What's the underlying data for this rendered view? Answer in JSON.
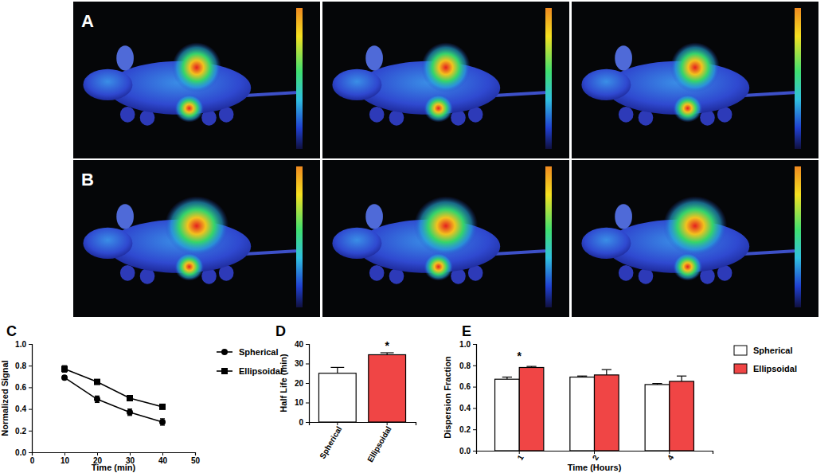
{
  "photo_panels": {
    "labels": [
      "A",
      "B"
    ]
  },
  "chart_data": [
    {
      "type": "line",
      "panel_label": "C",
      "x": [
        10,
        20,
        30,
        40
      ],
      "xlim": [
        0,
        50
      ],
      "xticks": [
        0,
        10,
        20,
        30,
        40,
        50
      ],
      "ylim": [
        0,
        1
      ],
      "yticks": [
        {
          "value": 0,
          "label": "0.0"
        },
        {
          "value": 0.2,
          "label": "0.2"
        },
        {
          "value": 0.4,
          "label": "0.4"
        },
        {
          "value": 0.6,
          "label": "0.6"
        },
        {
          "value": 0.8,
          "label": "0.8"
        },
        {
          "value": 1,
          "label": "1.0"
        }
      ],
      "x_label": "Time (min)",
      "y_label": "Normalized Signal",
      "legend": "right",
      "series": [
        {
          "name": "Spherical",
          "color": "#000000",
          "marker": "circle",
          "values": [
            0.69,
            0.49,
            0.37,
            0.28
          ],
          "errors": [
            0.01,
            0.03,
            0.03,
            0.03
          ]
        },
        {
          "name": "Ellipsoidal",
          "color": "#000000",
          "marker": "square",
          "values": [
            0.77,
            0.65,
            0.5,
            0.42
          ],
          "errors": [
            0.03,
            0.01,
            0.01,
            0.01
          ]
        }
      ]
    },
    {
      "type": "bar",
      "panel_label": "D",
      "categories": [
        "Spherical",
        "Ellipsoidal"
      ],
      "values": [
        25,
        34.5
      ],
      "errors": [
        3,
        1
      ],
      "colors": [
        "#ffffff",
        "#f04545"
      ],
      "ylim": [
        0,
        40
      ],
      "yticks": [
        0,
        10,
        20,
        30,
        40
      ],
      "y_label": "Half Life (min)",
      "annotations": [
        {
          "text": "*",
          "x": "Ellipsoidal"
        }
      ]
    },
    {
      "type": "bar",
      "panel_label": "E",
      "categories": [
        "1",
        "2",
        "4"
      ],
      "ylim": [
        0,
        1
      ],
      "yticks": [
        {
          "value": 0,
          "label": "0.0"
        },
        {
          "value": 0.2,
          "label": "0.2"
        },
        {
          "value": 0.4,
          "label": "0.4"
        },
        {
          "value": 0.6,
          "label": "0.6"
        },
        {
          "value": 0.8,
          "label": "0.8"
        },
        {
          "value": 1,
          "label": "1.0"
        }
      ],
      "x_label": "Time (Hours)",
      "y_label": "Dispersion Fraction",
      "legend": "right",
      "series": [
        {
          "name": "Spherical",
          "color": "#ffffff",
          "values": [
            0.67,
            0.69,
            0.62
          ],
          "errors": [
            0.02,
            0.01,
            0.01
          ]
        },
        {
          "name": "Ellipsoidal",
          "color": "#f04545",
          "values": [
            0.78,
            0.71,
            0.65
          ],
          "errors": [
            0.01,
            0.05,
            0.05
          ]
        }
      ],
      "annotations": [
        {
          "text": "*",
          "x": "1"
        }
      ]
    }
  ]
}
